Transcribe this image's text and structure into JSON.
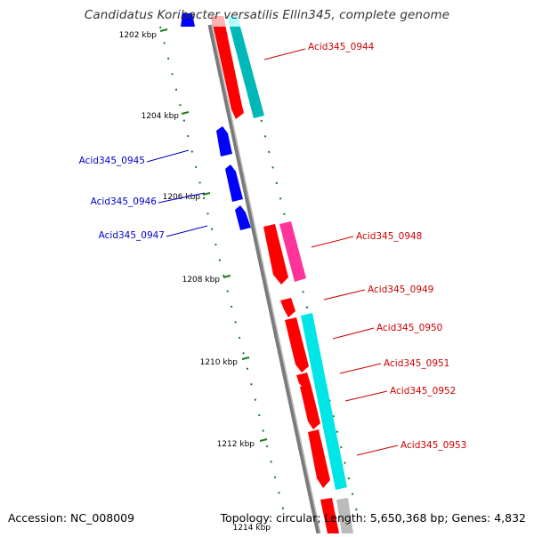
{
  "title": "Candidatus Koribacter versatilis Ellin345, complete genome",
  "footer": {
    "accession_label": "Accession:",
    "accession": "NC_008009",
    "topology_label": "Topology:",
    "topology": "circular",
    "length_label": "Length:",
    "length": "5,650,368 bp",
    "genes_label": "Genes:",
    "genes": "4,832"
  },
  "colors": {
    "backbone": "#7a7a7a",
    "tick": "#1a7a1a",
    "forward_cds": "#ff0000",
    "reverse_cds": "#0000ff",
    "forward_label": "#cc0000",
    "reverse_label": "#0000cc",
    "cyan_feature": "#00e5e5",
    "magenta_feature": "#ff3399"
  },
  "scale_labels": [
    "1202 kbp",
    "1204 kbp",
    "1206 kbp",
    "1208 kbp",
    "1210 kbp",
    "1212 kbp",
    "1214 kbp"
  ],
  "genes": [
    {
      "label": "Acid345_0944",
      "strand": "forward"
    },
    {
      "label": "Acid345_0945",
      "strand": "reverse"
    },
    {
      "label": "Acid345_0946",
      "strand": "reverse"
    },
    {
      "label": "Acid345_0947",
      "strand": "reverse"
    },
    {
      "label": "Acid345_0948",
      "strand": "forward"
    },
    {
      "label": "Acid345_0949",
      "strand": "forward"
    },
    {
      "label": "Acid345_0950",
      "strand": "forward"
    },
    {
      "label": "Acid345_0951",
      "strand": "forward"
    },
    {
      "label": "Acid345_0952",
      "strand": "forward"
    },
    {
      "label": "Acid345_0953",
      "strand": "forward"
    }
  ]
}
